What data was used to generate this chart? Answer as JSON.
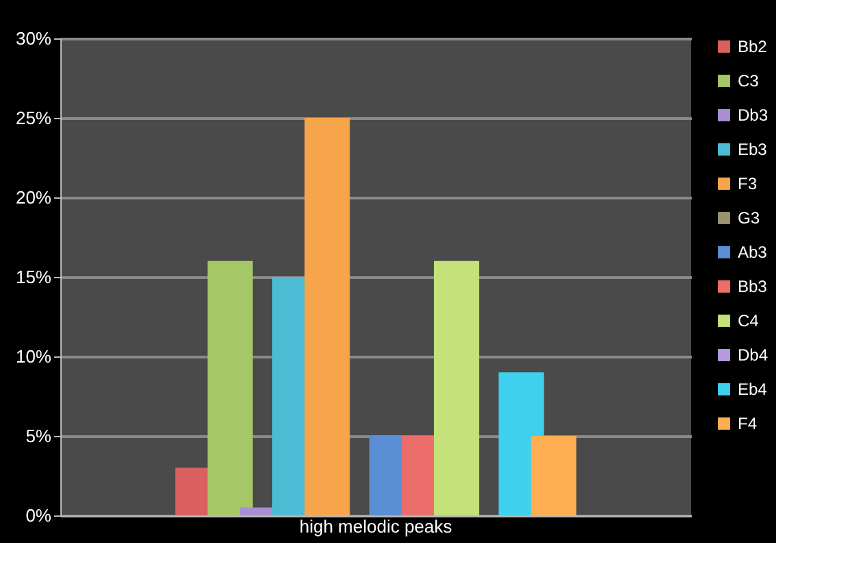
{
  "chart_data": {
    "type": "bar",
    "categories": [
      "high melodic peaks"
    ],
    "series": [
      {
        "name": "Bb2",
        "color": "#d9605f",
        "values": [
          3
        ]
      },
      {
        "name": "C3",
        "color": "#a5c765",
        "values": [
          16
        ]
      },
      {
        "name": "Db3",
        "color": "#a98fd0",
        "values": [
          0.5
        ]
      },
      {
        "name": "Eb3",
        "color": "#4cbcd4",
        "values": [
          15
        ]
      },
      {
        "name": "F3",
        "color": "#f7a54b",
        "values": [
          25
        ]
      },
      {
        "name": "G3",
        "color": "#9a9370",
        "values": [
          0
        ]
      },
      {
        "name": "Ab3",
        "color": "#5a8fd6",
        "values": [
          5
        ]
      },
      {
        "name": "Bb3",
        "color": "#ec6e6a",
        "values": [
          5
        ]
      },
      {
        "name": "C4",
        "color": "#c4e17a",
        "values": [
          16
        ]
      },
      {
        "name": "Db4",
        "color": "#b59ae0",
        "values": [
          0
        ]
      },
      {
        "name": "Eb4",
        "color": "#3fd0ef",
        "values": [
          9
        ]
      },
      {
        "name": "F4",
        "color": "#fcae50",
        "values": [
          5
        ]
      }
    ],
    "ylim": [
      0,
      30
    ],
    "yticks": [
      {
        "value": 0,
        "label": "0%"
      },
      {
        "value": 5,
        "label": "5%"
      },
      {
        "value": 10,
        "label": "10%"
      },
      {
        "value": 15,
        "label": "15%"
      },
      {
        "value": 20,
        "label": "20%"
      },
      {
        "value": 25,
        "label": "25%"
      },
      {
        "value": 30,
        "label": "30%"
      }
    ],
    "grid": "y",
    "legend": "right"
  }
}
